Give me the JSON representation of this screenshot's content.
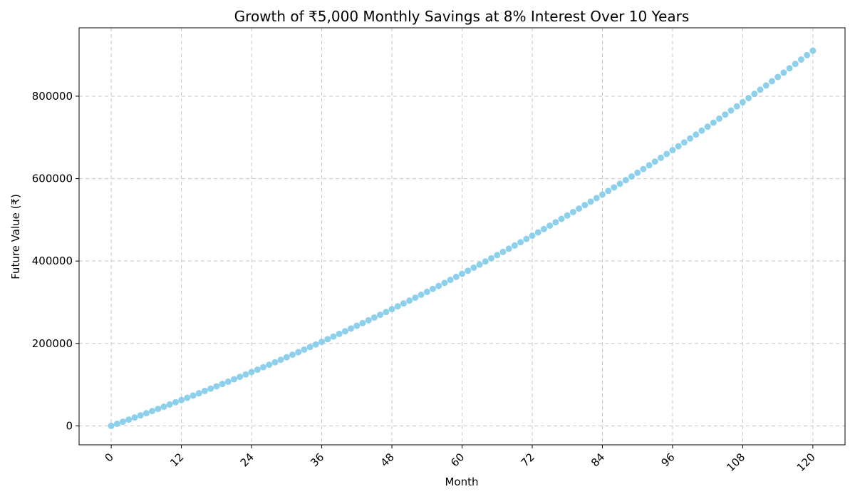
{
  "chart_data": {
    "type": "scatter",
    "title": "Growth of ₹5,000 Monthly Savings at 8% Interest Over 10 Years",
    "xlabel": "Month",
    "ylabel": "Future Value (₹)",
    "x_ticks": [
      0,
      12,
      24,
      36,
      48,
      60,
      72,
      84,
      96,
      108,
      120
    ],
    "x_tick_labels": [
      "0",
      "12",
      "24",
      "36",
      "48",
      "60",
      "72",
      "84",
      "96",
      "108",
      "120"
    ],
    "y_ticks": [
      0,
      200000,
      400000,
      600000,
      800000
    ],
    "y_tick_labels": [
      "0",
      "200000",
      "400000",
      "600000",
      "800000"
    ],
    "xlim": [
      -5.5,
      125.5
    ],
    "ylim": [
      -46000,
      966000
    ],
    "grid": true,
    "x_tick_rotation": 45,
    "marker_color": "#87CEEB",
    "series": [
      {
        "x": [
          0,
          1,
          2,
          3,
          4,
          5,
          6,
          7,
          8,
          9,
          10,
          11,
          12,
          13,
          14,
          15,
          16,
          17,
          18,
          19,
          20,
          21,
          22,
          23,
          24,
          25,
          26,
          27,
          28,
          29,
          30,
          31,
          32,
          33,
          34,
          35,
          36,
          37,
          38,
          39,
          40,
          41,
          42,
          43,
          44,
          45,
          46,
          47,
          48,
          49,
          50,
          51,
          52,
          53,
          54,
          55,
          56,
          57,
          58,
          59,
          60,
          61,
          62,
          63,
          64,
          65,
          66,
          67,
          68,
          69,
          70,
          71,
          72,
          73,
          74,
          75,
          76,
          77,
          78,
          79,
          80,
          81,
          82,
          83,
          84,
          85,
          86,
          87,
          88,
          89,
          90,
          91,
          92,
          93,
          94,
          95,
          96,
          97,
          98,
          99,
          100,
          101,
          102,
          103,
          104,
          105,
          106,
          107,
          108,
          109,
          110,
          111,
          112,
          113,
          114,
          115,
          116,
          117,
          118,
          119,
          120
        ],
        "values": [
          0,
          5033,
          10100,
          15201,
          20336,
          25505,
          30710,
          35948,
          41222,
          46531,
          51876,
          57255,
          62671,
          68122,
          73610,
          79134,
          84694,
          90291,
          95925,
          101596,
          107304,
          113049,
          118833,
          124654,
          130514,
          136412,
          142348,
          148324,
          154339,
          160393,
          166487,
          172621,
          178795,
          185009,
          191263,
          197559,
          203896,
          210274,
          216693,
          223155,
          229659,
          236205,
          242793,
          249425,
          256100,
          262817,
          269579,
          276384,
          283233,
          290127,
          297065,
          304049,
          311077,
          318150,
          325270,
          332435,
          339646,
          346903,
          354207,
          361557,
          368955,
          376400,
          383893,
          391434,
          399023,
          406661,
          414347,
          422082,
          429867,
          437701,
          445586,
          453520,
          461505,
          469542,
          477630,
          485769,
          493960,
          502203,
          510499,
          518847,
          527248,
          535703,
          544211,
          552774,
          561391,
          570062,
          578788,
          587570,
          596407,
          605300,
          614249,
          623254,
          632316,
          641436,
          650612,
          659847,
          669139,
          678490,
          687900,
          697368,
          706896,
          716484,
          726132,
          735840,
          745609,
          755440,
          765332,
          775286,
          785302,
          795381,
          805524,
          815729,
          825998,
          836332,
          846730,
          857193,
          867722,
          878316,
          888975,
          899702,
          910495
        ]
      }
    ]
  }
}
